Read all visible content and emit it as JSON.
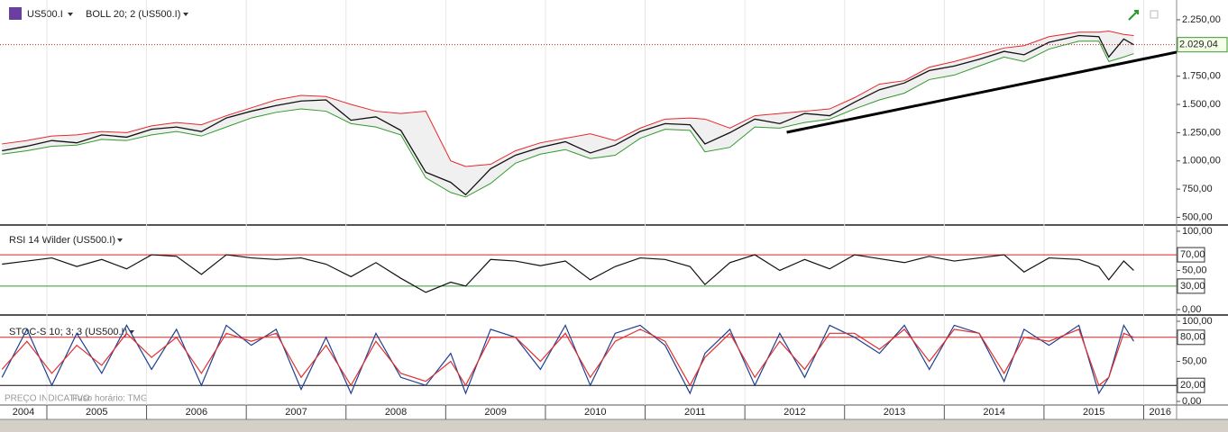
{
  "header": {
    "symbol": "US500.I",
    "note": "PREÇO INDICATIVO",
    "timezone": "Fuso horário: TMG"
  },
  "chart_data": [
    {
      "type": "bollinger",
      "label": "BOLL 20; 2 (US500.I)",
      "x": [
        2004.55,
        2004.8,
        2005.05,
        2005.3,
        2005.55,
        2005.8,
        2006.05,
        2006.3,
        2006.55,
        2006.8,
        2007.05,
        2007.3,
        2007.55,
        2007.8,
        2008.05,
        2008.3,
        2008.55,
        2008.8,
        2009.05,
        2009.2,
        2009.45,
        2009.7,
        2009.95,
        2010.2,
        2010.45,
        2010.7,
        2010.95,
        2011.2,
        2011.45,
        2011.6,
        2011.85,
        2012.1,
        2012.35,
        2012.6,
        2012.85,
        2013.1,
        2013.35,
        2013.6,
        2013.85,
        2014.1,
        2014.35,
        2014.6,
        2014.8,
        2015.05,
        2015.35,
        2015.55,
        2015.65,
        2015.8,
        2015.9
      ],
      "values": [
        1090,
        1130,
        1180,
        1160,
        1230,
        1210,
        1280,
        1300,
        1260,
        1380,
        1440,
        1490,
        1530,
        1540,
        1360,
        1390,
        1270,
        900,
        810,
        700,
        930,
        1050,
        1120,
        1170,
        1070,
        1140,
        1260,
        1330,
        1320,
        1150,
        1250,
        1370,
        1330,
        1420,
        1400,
        1520,
        1630,
        1690,
        1800,
        1840,
        1900,
        1970,
        1940,
        2050,
        2110,
        2100,
        1920,
        2080,
        2029
      ],
      "upper": [
        1150,
        1180,
        1220,
        1230,
        1260,
        1250,
        1310,
        1340,
        1320,
        1400,
        1470,
        1540,
        1580,
        1570,
        1500,
        1440,
        1420,
        1440,
        1000,
        950,
        970,
        1090,
        1160,
        1200,
        1240,
        1180,
        1290,
        1370,
        1380,
        1370,
        1290,
        1400,
        1420,
        1440,
        1460,
        1560,
        1680,
        1710,
        1830,
        1880,
        1940,
        2000,
        2020,
        2100,
        2140,
        2140,
        2150,
        2120,
        2110
      ],
      "lower": [
        1060,
        1090,
        1130,
        1140,
        1190,
        1180,
        1230,
        1260,
        1220,
        1300,
        1380,
        1430,
        1460,
        1440,
        1330,
        1300,
        1230,
        850,
        720,
        680,
        800,
        980,
        1060,
        1100,
        1020,
        1050,
        1200,
        1280,
        1270,
        1080,
        1120,
        1300,
        1290,
        1340,
        1370,
        1460,
        1540,
        1600,
        1720,
        1760,
        1840,
        1920,
        1880,
        1990,
        2060,
        2060,
        1880,
        1920,
        1950
      ],
      "colors": {
        "price": "#111111",
        "upper": "#e8262b",
        "lower": "#2f9a2a",
        "fill": "#f0f0f0",
        "last": "#c0282b",
        "trend": "#000000"
      },
      "last": {
        "value": 2029.04,
        "label": "2.029,04"
      },
      "trendline": {
        "x": [
          2012.42,
          2016.33
        ],
        "y": [
          1253,
          1963
        ]
      },
      "xlim": [
        2004.53,
        2016.33
      ],
      "xticks": [
        2004,
        2005,
        2006,
        2007,
        2008,
        2009,
        2010,
        2011,
        2012,
        2013,
        2014,
        2015,
        2016
      ],
      "ylim": [
        448,
        2425
      ],
      "yticks": [
        {
          "value": 2250,
          "label": "2.250,00"
        },
        {
          "value": 1750,
          "label": "1.750,00"
        },
        {
          "value": 1500,
          "label": "1.500,00"
        },
        {
          "value": 1250,
          "label": "1.250,00"
        },
        {
          "value": 1000,
          "label": "1.000,00"
        },
        {
          "value": 750,
          "label": "750,00"
        },
        {
          "value": 500,
          "label": "500,00"
        }
      ]
    },
    {
      "type": "oscillator",
      "label": "RSI 14 Wilder (US500.I)",
      "ylim": [
        -4.6,
        105.7
      ],
      "yticks": [
        {
          "value": 100,
          "label": "100,00"
        },
        {
          "value": 50,
          "label": "50,00"
        },
        {
          "value": 0,
          "label": "0,00"
        }
      ],
      "levels": [
        {
          "value": 70,
          "label": "70,00",
          "color": "#d22"
        },
        {
          "value": 30,
          "label": "30,00",
          "color": "#2f9a2a"
        }
      ],
      "series": [
        {
          "color": "#111111",
          "values": [
            58,
            62,
            66,
            55,
            64,
            52,
            70,
            68,
            45,
            70,
            66,
            64,
            66,
            58,
            42,
            60,
            40,
            22,
            35,
            30,
            64,
            62,
            56,
            62,
            38,
            55,
            66,
            64,
            55,
            32,
            60,
            70,
            50,
            64,
            52,
            70,
            65,
            60,
            68,
            62,
            66,
            70,
            48,
            66,
            64,
            55,
            38,
            62,
            50
          ]
        }
      ]
    },
    {
      "type": "oscillator",
      "label": "STOC-S 10; 3; 3 (US500.I)",
      "ylim": [
        -4.5,
        105.6
      ],
      "yticks": [
        {
          "value": 100,
          "label": "100,00"
        },
        {
          "value": 50,
          "label": "50,00"
        },
        {
          "value": 0,
          "label": "0,00"
        }
      ],
      "levels": [
        {
          "value": 80,
          "label": "80,00",
          "color": "#d22"
        },
        {
          "value": 20,
          "label": "20,00",
          "color": "#111111"
        }
      ],
      "series": [
        {
          "color": "#1f3f8f",
          "values": [
            30,
            90,
            20,
            85,
            35,
            95,
            40,
            90,
            20,
            95,
            70,
            90,
            15,
            80,
            10,
            85,
            30,
            20,
            60,
            10,
            90,
            80,
            40,
            95,
            20,
            85,
            95,
            70,
            10,
            60,
            90,
            20,
            85,
            30,
            95,
            80,
            60,
            95,
            40,
            95,
            85,
            25,
            90,
            70,
            95,
            10,
            30,
            95,
            75
          ]
        },
        {
          "color": "#e03030",
          "values": [
            40,
            75,
            35,
            70,
            45,
            85,
            55,
            80,
            35,
            85,
            75,
            85,
            30,
            70,
            20,
            75,
            35,
            25,
            50,
            20,
            80,
            80,
            50,
            85,
            30,
            75,
            90,
            75,
            20,
            55,
            85,
            30,
            75,
            40,
            85,
            85,
            65,
            90,
            50,
            90,
            85,
            35,
            80,
            75,
            90,
            20,
            30,
            85,
            80
          ]
        }
      ]
    }
  ]
}
